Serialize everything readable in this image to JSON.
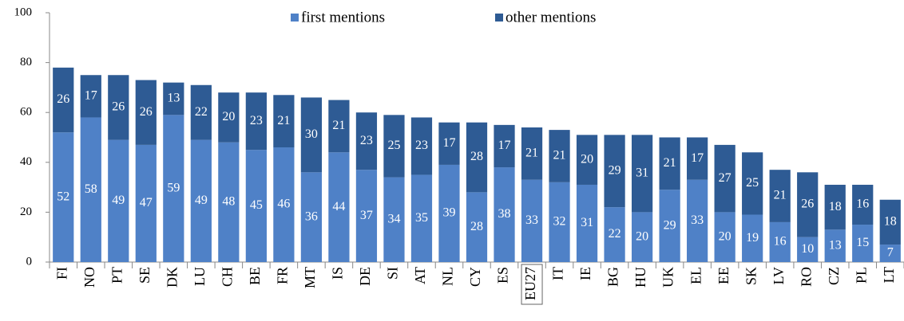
{
  "chart_data": {
    "type": "stacked_bar",
    "categories": [
      "FI",
      "NO",
      "PT",
      "SE",
      "DK",
      "LU",
      "CH",
      "BE",
      "FR",
      "MT",
      "IS",
      "DE",
      "SI",
      "AT",
      "NL",
      "CY",
      "ES",
      "EU27",
      "IT",
      "IE",
      "BG",
      "HU",
      "UK",
      "EL",
      "EE",
      "SK",
      "LV",
      "RO",
      "CZ",
      "PL",
      "LT"
    ],
    "series": [
      {
        "name": "first mentions",
        "color": "#4f81c7",
        "values": [
          52,
          58,
          49,
          47,
          59,
          49,
          48,
          45,
          46,
          36,
          44,
          37,
          34,
          35,
          39,
          28,
          38,
          33,
          32,
          31,
          22,
          20,
          29,
          33,
          20,
          19,
          16,
          10,
          13,
          15,
          7
        ]
      },
      {
        "name": "other mentions",
        "color": "#2e5b94",
        "values": [
          26,
          17,
          26,
          26,
          13,
          22,
          20,
          23,
          21,
          30,
          21,
          23,
          25,
          23,
          17,
          28,
          17,
          21,
          21,
          20,
          29,
          31,
          21,
          17,
          27,
          25,
          21,
          26,
          18,
          16,
          18
        ]
      }
    ],
    "ylim": [
      0,
      100
    ],
    "yticks": [
      0,
      20,
      40,
      60,
      80,
      100
    ],
    "grid": false
  }
}
